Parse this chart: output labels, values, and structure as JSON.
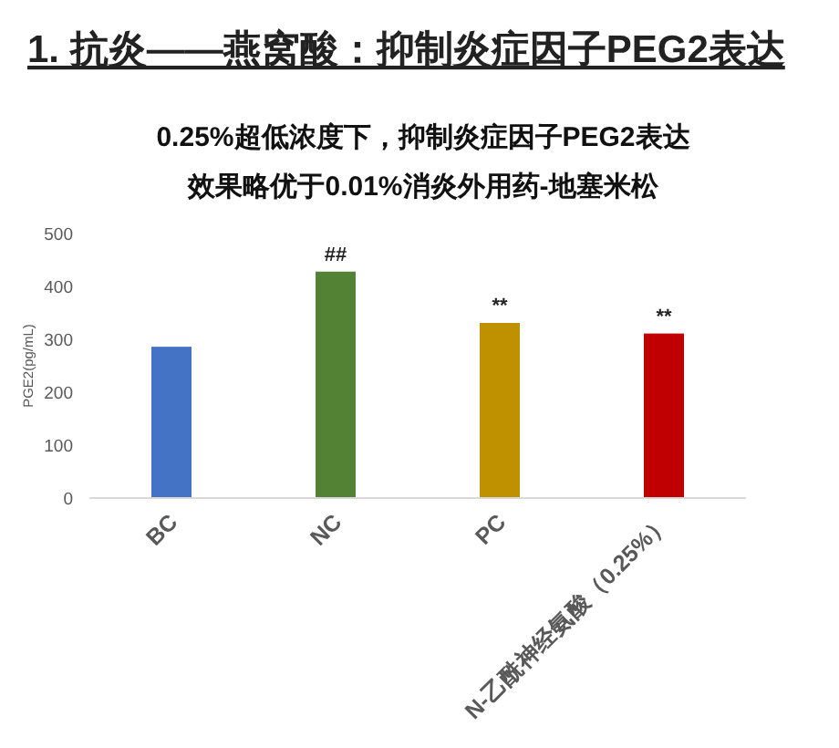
{
  "chart_data": {
    "type": "bar",
    "title": "1. 抗炎——燕窝酸：抑制炎症因子PEG2表达",
    "subtitle": "0.25%超低浓度下，抑制炎症因子PEG2表达",
    "ylabel": "PGE2(pg/mL)",
    "categories": [
      "BC",
      "NC",
      "PC",
      "N-乙酰神经氨酸（0.25%）"
    ],
    "values": [
      286,
      428,
      331,
      311
    ],
    "colors": [
      "#4472c4",
      "#548235",
      "#bf9000",
      "#c00000"
    ],
    "ylim": [
      0,
      500
    ],
    "yticks": [
      0,
      100,
      200,
      300,
      400,
      500
    ],
    "annotations": [
      "效果略优于0.01%消炎外用药-地塞米松",
      {
        "text": "##",
        "x": "NC",
        "y": 428
      },
      {
        "text": "**",
        "x": "PC",
        "y": 331
      },
      {
        "text": "**",
        "x": "N-乙酰神经氨酸（0.25%）",
        "y": 311
      }
    ],
    "grid": false
  }
}
